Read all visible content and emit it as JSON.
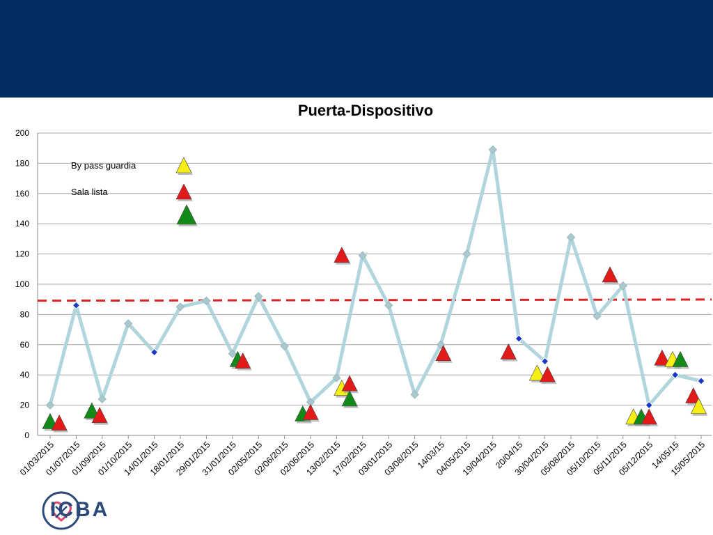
{
  "header": {
    "banner_color": "#012d63"
  },
  "chart_data": {
    "type": "line",
    "title": "Puerta-Dispositivo",
    "xlabel": "",
    "ylabel": "",
    "ylim": [
      0,
      200
    ],
    "yticks": [
      0,
      20,
      40,
      60,
      80,
      100,
      120,
      140,
      160,
      180,
      200
    ],
    "grid": true,
    "categories": [
      "01/03/2015",
      "01/07/2015",
      "01/09/2015",
      "01/10/2015",
      "14/01/2015",
      "18/01/2015",
      "29/01/2015",
      "31/01/2015",
      "02/05/2015",
      "02/06/2015",
      "02/06/2015",
      "13/02/2015",
      "17/02/2015",
      "03/01/2015",
      "03/08/2015",
      "14/03/15",
      "04/05/2015",
      "19/04/2015",
      "20/04/15",
      "30/04/2015",
      "05/08/2015",
      "05/10/2015",
      "05/11/2015",
      "05/12/2015",
      "14/05/15",
      "15/05/2015"
    ],
    "series": [
      {
        "values": [
          20,
          86,
          24,
          74,
          55,
          85,
          89,
          54,
          92,
          59,
          22,
          38,
          119,
          86,
          27,
          60,
          120,
          189,
          64,
          49,
          131,
          79,
          99,
          20,
          40,
          36
        ],
        "color": "#b1d5dc",
        "highlighted_points": [
          1,
          4,
          18,
          19,
          23,
          24,
          25
        ],
        "highlight_color": "#1838c8"
      }
    ],
    "reference_line": {
      "value": 89.5,
      "color": "#d82424",
      "style": "dashed"
    },
    "legend": {
      "position": "top-left",
      "entries": [
        {
          "label": "By pass guardia",
          "color": "#f7ef13"
        },
        {
          "label": "Sala lista",
          "color": "#e21a1a"
        },
        {
          "label": "",
          "color": "#138a18"
        }
      ]
    },
    "markers": [
      {
        "x": 0.0,
        "y": 9,
        "color": "green"
      },
      {
        "x": 0.35,
        "y": 8,
        "color": "red"
      },
      {
        "x": 1.6,
        "y": 16,
        "color": "green"
      },
      {
        "x": 1.9,
        "y": 13,
        "color": "red"
      },
      {
        "x": 7.2,
        "y": 50,
        "color": "green"
      },
      {
        "x": 7.4,
        "y": 49,
        "color": "red"
      },
      {
        "x": 9.7,
        "y": 14,
        "color": "green"
      },
      {
        "x": 10.0,
        "y": 15,
        "color": "red"
      },
      {
        "x": 11.2,
        "y": 31,
        "color": "yellow"
      },
      {
        "x": 11.2,
        "y": 119,
        "color": "red"
      },
      {
        "x": 11.5,
        "y": 34,
        "color": "red"
      },
      {
        "x": 11.5,
        "y": 24,
        "color": "green"
      },
      {
        "x": 15.1,
        "y": 54,
        "color": "red"
      },
      {
        "x": 17.6,
        "y": 55,
        "color": "red"
      },
      {
        "x": 18.7,
        "y": 41,
        "color": "yellow"
      },
      {
        "x": 19.1,
        "y": 40,
        "color": "red"
      },
      {
        "x": 21.5,
        "y": 106,
        "color": "red"
      },
      {
        "x": 22.4,
        "y": 12,
        "color": "yellow"
      },
      {
        "x": 22.7,
        "y": 12,
        "color": "green"
      },
      {
        "x": 23.0,
        "y": 12,
        "color": "red"
      },
      {
        "x": 23.5,
        "y": 51,
        "color": "red"
      },
      {
        "x": 23.9,
        "y": 50,
        "color": "yellow"
      },
      {
        "x": 24.2,
        "y": 50,
        "color": "green"
      },
      {
        "x": 24.7,
        "y": 26,
        "color": "red"
      },
      {
        "x": 24.9,
        "y": 19,
        "color": "yellow"
      }
    ]
  },
  "footer": {
    "logo_text": "ICBA"
  }
}
